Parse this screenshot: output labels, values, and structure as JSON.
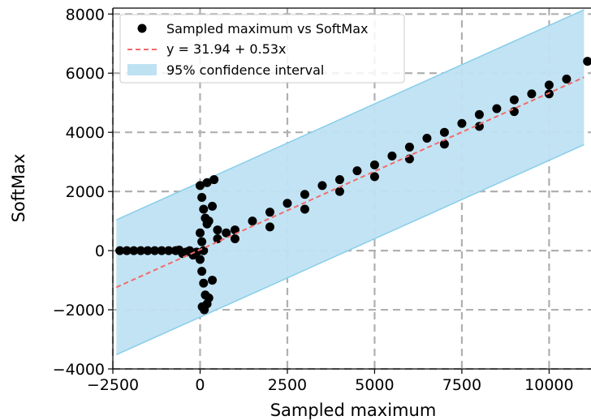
{
  "chart_data": {
    "type": "scatter",
    "xlabel": "Sampled maximum",
    "ylabel": "SoftMax",
    "xlim": [
      -2500,
      11200
    ],
    "ylim": [
      -4000,
      8200
    ],
    "x_ticks": [
      -2500,
      0,
      2500,
      5000,
      7500,
      10000
    ],
    "x_tick_labels": [
      "−2500",
      "0",
      "2500",
      "5000",
      "7500",
      "10000"
    ],
    "y_ticks": [
      -4000,
      -2000,
      0,
      2000,
      4000,
      6000,
      8000
    ],
    "y_tick_labels": [
      "−4000",
      "−2000",
      "0",
      "2000",
      "4000",
      "6000",
      "8000"
    ],
    "grid": true,
    "legend_position": "top-left",
    "series": [
      {
        "name": "Sampled maximum vs SoftMax",
        "kind": "scatter",
        "color": "#000000",
        "points": [
          [
            -2300,
            0
          ],
          [
            -2100,
            0
          ],
          [
            -1900,
            0
          ],
          [
            -1700,
            0
          ],
          [
            -1500,
            0
          ],
          [
            -1300,
            0
          ],
          [
            -1100,
            0
          ],
          [
            -900,
            0
          ],
          [
            -700,
            0
          ],
          [
            -600,
            20
          ],
          [
            -500,
            -100
          ],
          [
            -400,
            -50
          ],
          [
            -300,
            0
          ],
          [
            -200,
            -150
          ],
          [
            -100,
            -50
          ],
          [
            0,
            2200
          ],
          [
            50,
            1800
          ],
          [
            100,
            1400
          ],
          [
            150,
            1100
          ],
          [
            200,
            900
          ],
          [
            0,
            600
          ],
          [
            50,
            300
          ],
          [
            100,
            0
          ],
          [
            0,
            -300
          ],
          [
            50,
            -700
          ],
          [
            100,
            -1100
          ],
          [
            150,
            -1500
          ],
          [
            200,
            -1800
          ],
          [
            120,
            -2000
          ],
          [
            60,
            -1900
          ],
          [
            200,
            2300
          ],
          [
            400,
            2400
          ],
          [
            350,
            1500
          ],
          [
            250,
            1000
          ],
          [
            500,
            700
          ],
          [
            350,
            -1000
          ],
          [
            250,
            -1600
          ],
          [
            500,
            400
          ],
          [
            750,
            600
          ],
          [
            1000,
            700
          ],
          [
            1500,
            1000
          ],
          [
            2000,
            1300
          ],
          [
            2500,
            1600
          ],
          [
            3000,
            1900
          ],
          [
            3500,
            2200
          ],
          [
            4000,
            2400
          ],
          [
            4500,
            2700
          ],
          [
            5000,
            2900
          ],
          [
            5500,
            3200
          ],
          [
            6000,
            3500
          ],
          [
            6500,
            3800
          ],
          [
            7000,
            4000
          ],
          [
            7500,
            4300
          ],
          [
            8000,
            4600
          ],
          [
            8500,
            4800
          ],
          [
            9000,
            5100
          ],
          [
            9500,
            5300
          ],
          [
            10000,
            5600
          ],
          [
            10500,
            5800
          ],
          [
            11100,
            6400
          ],
          [
            1000,
            400
          ],
          [
            2000,
            800
          ],
          [
            3000,
            1400
          ],
          [
            4000,
            2000
          ],
          [
            5000,
            2500
          ],
          [
            6000,
            3100
          ],
          [
            7000,
            3600
          ],
          [
            8000,
            4200
          ],
          [
            9000,
            4700
          ],
          [
            10000,
            5300
          ]
        ]
      },
      {
        "name": "y = 31.94 + 0.53x",
        "kind": "line",
        "color": "#f26b6b",
        "intercept": 31.94,
        "slope": 0.53,
        "x_range": [
          -2400,
          11000
        ]
      },
      {
        "name": "95% confidence interval",
        "kind": "band",
        "color": "#bfe2f2",
        "edge_color": "#87ceeb",
        "x_range": [
          -2400,
          11000
        ],
        "lower_offset": -2280,
        "upper_offset": 2280
      }
    ]
  }
}
